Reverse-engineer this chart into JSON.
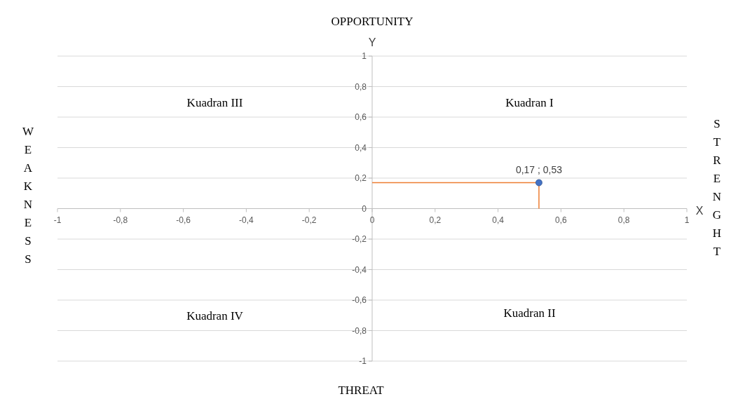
{
  "chart_data": {
    "type": "scatter",
    "title": "OPPORTUNITY",
    "xlabel": "X",
    "ylabel": "Y",
    "annotations": [
      "THREAT",
      "WEAKNESS",
      "STRENGHT",
      "Kuadran I",
      "Kuadran II",
      "Kuadran III",
      "Kuadran IV",
      {
        "text": "0,17 ; 0,53",
        "x": 0.53,
        "y": 0.17
      }
    ],
    "xlim": [
      -1,
      1
    ],
    "ylim": [
      -1,
      1
    ],
    "xticks": [
      -1,
      {
        "value": -0.8,
        "label": "-0,8"
      },
      {
        "value": -0.6,
        "label": "-0,6"
      },
      {
        "value": -0.4,
        "label": "-0,4"
      },
      {
        "value": -0.2,
        "label": "-0,2"
      },
      0,
      {
        "value": 0.2,
        "label": "0,2"
      },
      {
        "value": 0.4,
        "label": "0,4"
      },
      {
        "value": 0.6,
        "label": "0,6"
      },
      {
        "value": 0.8,
        "label": "0,8"
      },
      1
    ],
    "yticks": [
      -1,
      {
        "value": -0.8,
        "label": "-0,8"
      },
      {
        "value": -0.6,
        "label": "-0,6"
      },
      {
        "value": -0.4,
        "label": "-0,4"
      },
      {
        "value": -0.2,
        "label": "-0,2"
      },
      0,
      {
        "value": 0.2,
        "label": "0,2"
      },
      {
        "value": 0.4,
        "label": "0,4"
      },
      {
        "value": 0.6,
        "label": "0,6"
      },
      {
        "value": 0.8,
        "label": "0,8"
      },
      1
    ],
    "grid": "y",
    "marker": "circle",
    "series": [
      {
        "type": "scatter",
        "x": [
          0.53
        ],
        "values": [
          0.17
        ],
        "color": "#4472c4",
        "errors": [
          [
            0,
            0.17
          ]
        ],
        "xerrors": [
          [
            0,
            0.53
          ]
        ]
      }
    ]
  }
}
